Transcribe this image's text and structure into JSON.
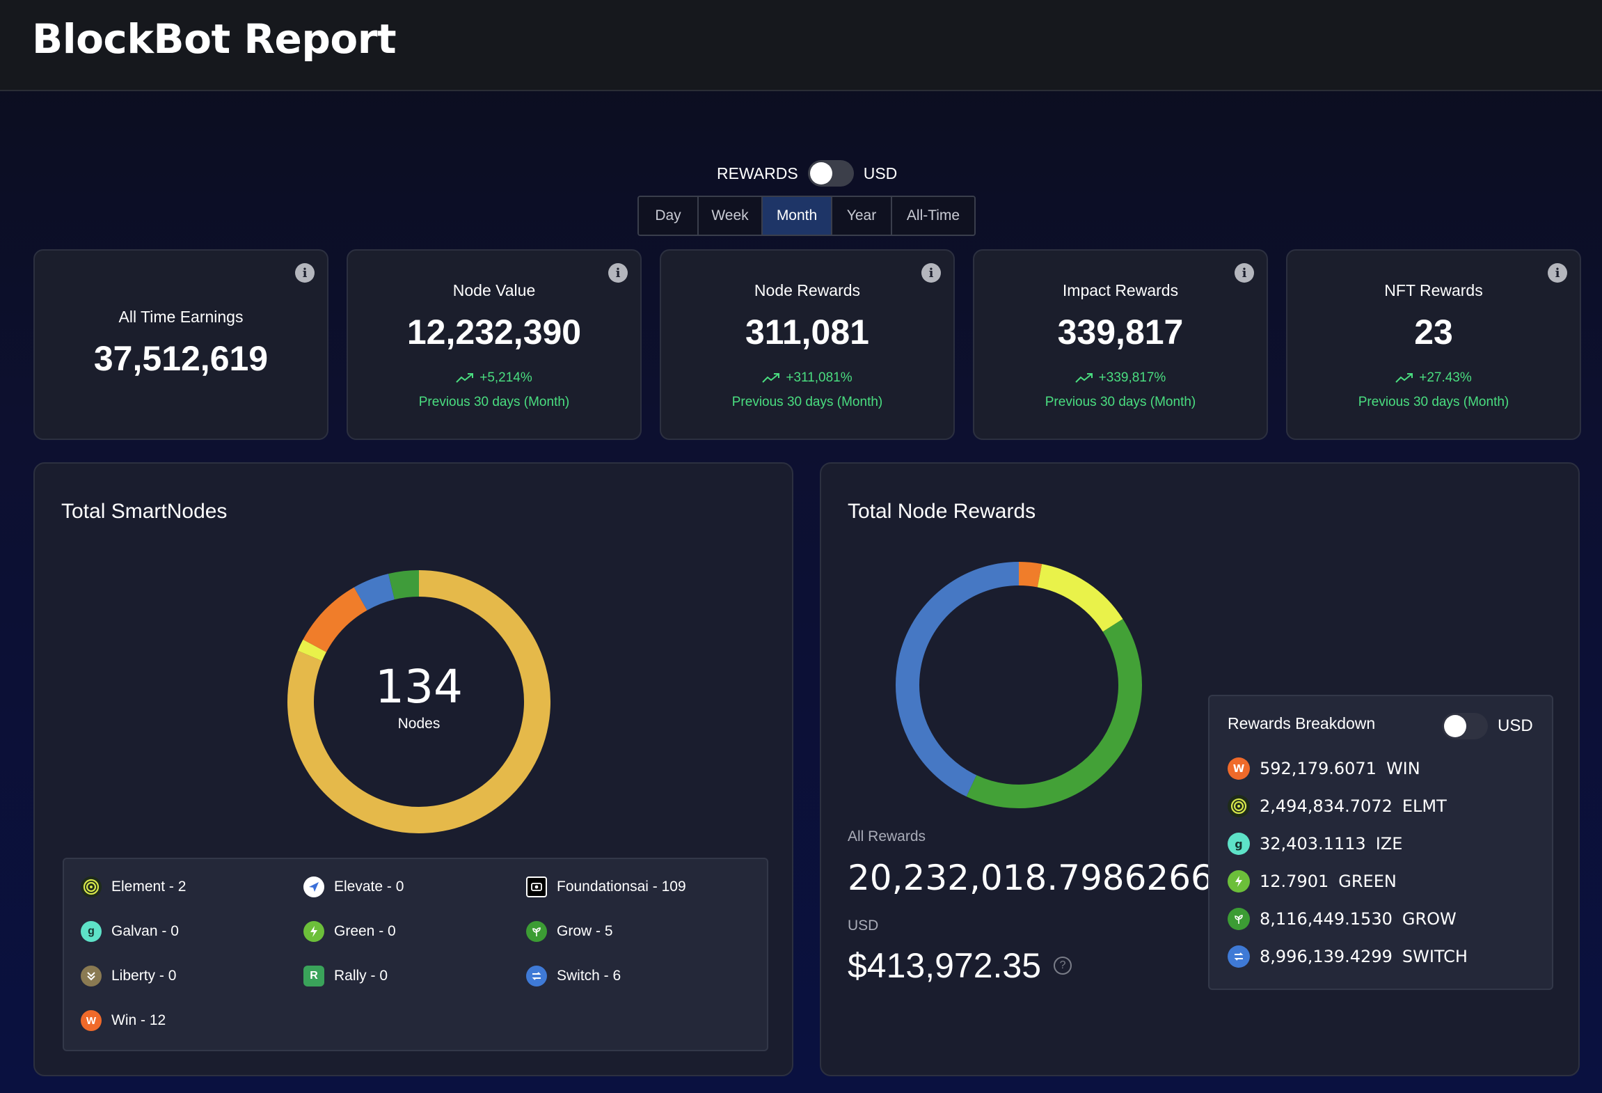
{
  "header": {
    "title": "BlockBot Report"
  },
  "mode_toggle": {
    "left_label": "REWARDS",
    "right_label": "USD"
  },
  "period_tabs": [
    {
      "label": "Day",
      "active": false
    },
    {
      "label": "Week",
      "active": false
    },
    {
      "label": "Month",
      "active": true
    },
    {
      "label": "Year",
      "active": false
    },
    {
      "label": "All-Time",
      "active": false
    }
  ],
  "stats": [
    {
      "label": "All Time Earnings",
      "value": "37,512,619",
      "change": "",
      "period": ""
    },
    {
      "label": "Node Value",
      "value": "12,232,390",
      "change": "+5,214%",
      "period": "Previous 30 days (Month)"
    },
    {
      "label": "Node Rewards",
      "value": "311,081",
      "change": "+311,081%",
      "period": "Previous 30 days (Month)"
    },
    {
      "label": "Impact Rewards",
      "value": "339,817",
      "change": "+339,817%",
      "period": "Previous 30 days (Month)"
    },
    {
      "label": "NFT Rewards",
      "value": "23",
      "change": "+27.43%",
      "period": "Previous 30 days (Month)"
    }
  ],
  "smartnodes": {
    "title": "Total SmartNodes",
    "center_value": "134",
    "center_label": "Nodes",
    "legend": [
      {
        "label": "Element - 2",
        "icon": "element-icon",
        "color": "#1e2b1a"
      },
      {
        "label": "Elevate - 0",
        "icon": "elevate-icon",
        "color": "#ffffff"
      },
      {
        "label": "Foundationsai - 109",
        "icon": "foundationsai-icon",
        "color": "#000000"
      },
      {
        "label": "Galvan - 0",
        "icon": "galvan-icon",
        "color": "#5ee2c8"
      },
      {
        "label": "Green - 0",
        "icon": "green-icon",
        "color": "#6cbf3a"
      },
      {
        "label": "Grow - 5",
        "icon": "grow-icon",
        "color": "#3c9c34"
      },
      {
        "label": "Liberty - 0",
        "icon": "liberty-icon",
        "color": "#8a7a52"
      },
      {
        "label": "Rally - 0",
        "icon": "rally-icon",
        "color": "#3aa35a"
      },
      {
        "label": "Switch - 6",
        "icon": "switch-icon",
        "color": "#3f7ad6"
      },
      {
        "label": "Win - 12",
        "icon": "win-icon",
        "color": "#f06a2a"
      }
    ],
    "chart_data": {
      "type": "pie",
      "categories": [
        "Foundationsai",
        "Yellow",
        "Win",
        "Switch",
        "Grow"
      ],
      "values": [
        109,
        2,
        12,
        6,
        5
      ],
      "colors": [
        "#e5b94a",
        "#e9f24a",
        "#f07d2a",
        "#4579c6",
        "#3f9c3a"
      ]
    }
  },
  "node_rewards": {
    "title": "Total Node Rewards",
    "all_rewards_label": "All Rewards",
    "all_rewards_value": "20,232,018.7986266",
    "usd_label": "USD",
    "usd_value": "$413,972.35",
    "chart_data": {
      "type": "pie",
      "categories": [
        "WIN",
        "Yellow",
        "GROW",
        "SWITCH"
      ],
      "values": [
        3,
        13,
        41,
        43
      ],
      "colors": [
        "#f07d2a",
        "#e9f24a",
        "#43a137",
        "#4678c4"
      ]
    },
    "breakdown": {
      "title": "Rewards Breakdown",
      "toggle_label": "USD",
      "rows": [
        {
          "amount": "592,179.6071",
          "token": "WIN",
          "icon": "win-icon",
          "color": "#f06a2a"
        },
        {
          "amount": "2,494,834.7072",
          "token": "ELMT",
          "icon": "element-icon",
          "color": "#1e2b1a"
        },
        {
          "amount": "32,403.1113",
          "token": "IZE",
          "icon": "galvan-icon",
          "color": "#5ee2c8"
        },
        {
          "amount": "12.7901",
          "token": "GREEN",
          "icon": "green-icon",
          "color": "#6cbf3a"
        },
        {
          "amount": "8,116,449.1530",
          "token": "GROW",
          "icon": "grow-icon",
          "color": "#3c9c34"
        },
        {
          "amount": "8,996,139.4299",
          "token": "SWITCH",
          "icon": "switch-icon",
          "color": "#3f7ad6"
        }
      ]
    }
  }
}
